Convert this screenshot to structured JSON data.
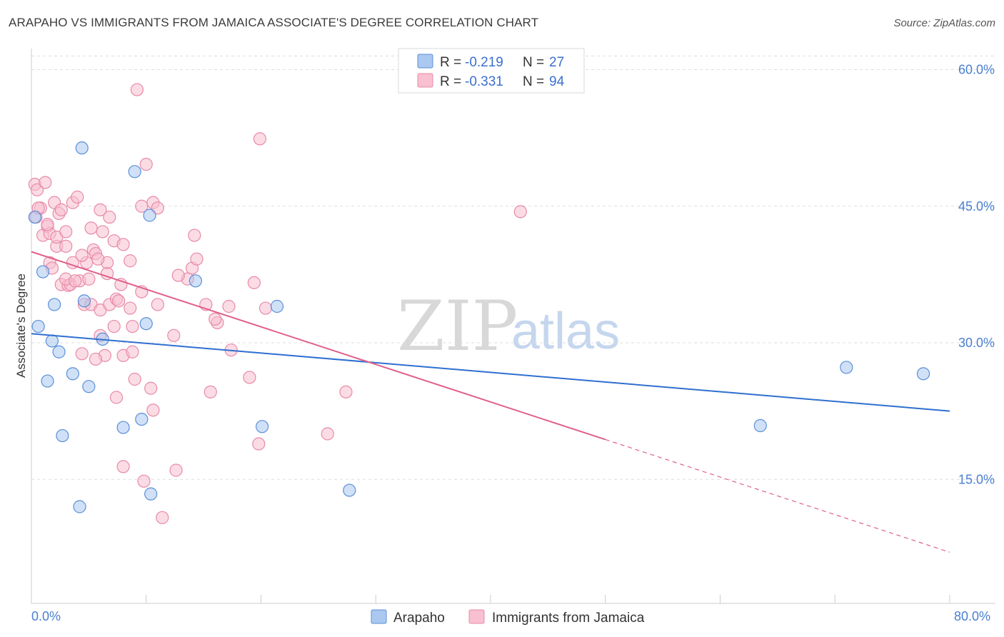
{
  "title": "ARAPAHO VS IMMIGRANTS FROM JAMAICA ASSOCIATE'S DEGREE CORRELATION CHART",
  "source": "Source: ZipAtlas.com",
  "watermark": {
    "zip": "ZIP",
    "atlas": "atlas"
  },
  "colors": {
    "arapaho_fill": "#aac8f0",
    "arapaho_stroke": "#5b8fd8",
    "arapaho_line": "#2f6fd0",
    "jamaica_fill": "#f8c0d0",
    "jamaica_stroke": "#e88aa8",
    "jamaica_line": "#e0608a",
    "grid": "#dddddd",
    "axis_tick_text": "#4a7fd0"
  },
  "legend": {
    "r_label": "R = ",
    "n_label": "N = ",
    "entries": [
      {
        "r": "-0.219",
        "n": "27"
      },
      {
        "r": "-0.331",
        "n": "94"
      }
    ]
  },
  "bottom_legend": [
    "Arapaho",
    "Immigrants from Jamaica"
  ],
  "chart_data": {
    "type": "scatter",
    "title": "ARAPAHO VS IMMIGRANTS FROM JAMAICA ASSOCIATE'S DEGREE CORRELATION CHART",
    "xlabel": "",
    "ylabel": "Associate's Degree",
    "xlim": [
      0,
      80
    ],
    "ylim": [
      0,
      63
    ],
    "x_tick_labels": [
      "0.0%",
      "80.0%"
    ],
    "y_ticks": [
      15,
      30,
      45,
      60
    ],
    "y_tick_labels": [
      "15.0%",
      "30.0%",
      "45.0%",
      "60.0%"
    ],
    "grid": true,
    "legend_position": "top-center",
    "series": [
      {
        "name": "Arapaho",
        "r": -0.219,
        "n": 27,
        "trend": {
          "x0": 0,
          "y0": 31.0,
          "x1": 80,
          "y1": 22.5,
          "dashed_from": null
        },
        "points": [
          [
            0.3,
            43.8
          ],
          [
            1.0,
            37.8
          ],
          [
            0.6,
            31.8
          ],
          [
            2.0,
            34.2
          ],
          [
            1.8,
            30.2
          ],
          [
            2.4,
            29.0
          ],
          [
            1.4,
            25.8
          ],
          [
            3.6,
            26.6
          ],
          [
            5.0,
            25.2
          ],
          [
            4.6,
            34.6
          ],
          [
            6.2,
            30.4
          ],
          [
            2.7,
            19.8
          ],
          [
            4.2,
            12.0
          ],
          [
            4.4,
            51.4
          ],
          [
            9.0,
            48.8
          ],
          [
            10.3,
            44.0
          ],
          [
            14.3,
            36.8
          ],
          [
            10.0,
            32.1
          ],
          [
            8.0,
            20.7
          ],
          [
            9.6,
            21.6
          ],
          [
            10.4,
            13.4
          ],
          [
            21.4,
            34.0
          ],
          [
            20.1,
            20.8
          ],
          [
            27.7,
            13.8
          ],
          [
            63.5,
            20.9
          ],
          [
            71.0,
            27.3
          ],
          [
            77.7,
            26.6
          ]
        ]
      },
      {
        "name": "Immigrants from Jamaica",
        "r": -0.331,
        "n": 94,
        "trend": {
          "x0": 0,
          "y0": 40.0,
          "x1": 80,
          "y1": 7.0,
          "dashed_from": 50
        },
        "points": [
          [
            0.3,
            47.4
          ],
          [
            0.5,
            46.8
          ],
          [
            0.8,
            44.8
          ],
          [
            1.2,
            47.6
          ],
          [
            0.4,
            43.8
          ],
          [
            1.0,
            41.8
          ],
          [
            1.4,
            42.8
          ],
          [
            1.6,
            42.0
          ],
          [
            2.0,
            45.4
          ],
          [
            2.4,
            44.2
          ],
          [
            2.6,
            44.6
          ],
          [
            3.6,
            45.4
          ],
          [
            4.0,
            46.0
          ],
          [
            2.2,
            40.6
          ],
          [
            3.0,
            40.6
          ],
          [
            1.6,
            38.8
          ],
          [
            1.8,
            38.2
          ],
          [
            2.6,
            36.4
          ],
          [
            3.2,
            36.3
          ],
          [
            3.4,
            36.4
          ],
          [
            3.0,
            37.0
          ],
          [
            4.2,
            36.8
          ],
          [
            5.0,
            37.0
          ],
          [
            4.8,
            38.8
          ],
          [
            3.6,
            38.8
          ],
          [
            5.2,
            42.6
          ],
          [
            5.4,
            40.2
          ],
          [
            5.6,
            39.8
          ],
          [
            6.2,
            42.2
          ],
          [
            6.6,
            38.8
          ],
          [
            6.8,
            43.8
          ],
          [
            7.2,
            41.2
          ],
          [
            8.0,
            40.8
          ],
          [
            8.6,
            39.0
          ],
          [
            6.0,
            44.6
          ],
          [
            9.6,
            45.0
          ],
          [
            10.6,
            45.4
          ],
          [
            11.0,
            44.8
          ],
          [
            10.0,
            49.6
          ],
          [
            9.2,
            57.8
          ],
          [
            4.6,
            34.2
          ],
          [
            5.2,
            34.2
          ],
          [
            6.0,
            33.6
          ],
          [
            6.8,
            34.2
          ],
          [
            7.4,
            34.8
          ],
          [
            7.6,
            34.6
          ],
          [
            9.6,
            35.6
          ],
          [
            11.0,
            34.2
          ],
          [
            12.4,
            30.8
          ],
          [
            7.2,
            31.8
          ],
          [
            8.8,
            31.8
          ],
          [
            6.0,
            30.8
          ],
          [
            8.0,
            28.6
          ],
          [
            8.8,
            29.0
          ],
          [
            6.4,
            28.6
          ],
          [
            5.6,
            28.2
          ],
          [
            4.4,
            28.8
          ],
          [
            9.0,
            26.0
          ],
          [
            10.4,
            25.0
          ],
          [
            7.4,
            24.0
          ],
          [
            10.6,
            22.6
          ],
          [
            14.0,
            38.2
          ],
          [
            13.6,
            37.0
          ],
          [
            12.8,
            37.4
          ],
          [
            14.4,
            39.2
          ],
          [
            14.2,
            41.8
          ],
          [
            15.2,
            34.2
          ],
          [
            16.2,
            32.2
          ],
          [
            16.0,
            32.6
          ],
          [
            17.2,
            34.0
          ],
          [
            17.4,
            29.2
          ],
          [
            15.6,
            24.6
          ],
          [
            19.4,
            36.6
          ],
          [
            20.4,
            33.8
          ],
          [
            19.0,
            26.2
          ],
          [
            19.8,
            18.9
          ],
          [
            19.9,
            52.4
          ],
          [
            12.6,
            16.0
          ],
          [
            8.0,
            16.4
          ],
          [
            9.8,
            14.8
          ],
          [
            11.4,
            10.8
          ],
          [
            25.8,
            20.0
          ],
          [
            27.4,
            24.6
          ],
          [
            42.6,
            44.4
          ],
          [
            0.6,
            44.8
          ],
          [
            1.4,
            43.0
          ],
          [
            2.2,
            41.6
          ],
          [
            3.0,
            42.2
          ],
          [
            4.4,
            39.6
          ],
          [
            5.8,
            39.2
          ],
          [
            6.6,
            37.6
          ],
          [
            7.8,
            36.4
          ],
          [
            8.6,
            33.8
          ],
          [
            3.8,
            36.8
          ]
        ]
      }
    ]
  }
}
